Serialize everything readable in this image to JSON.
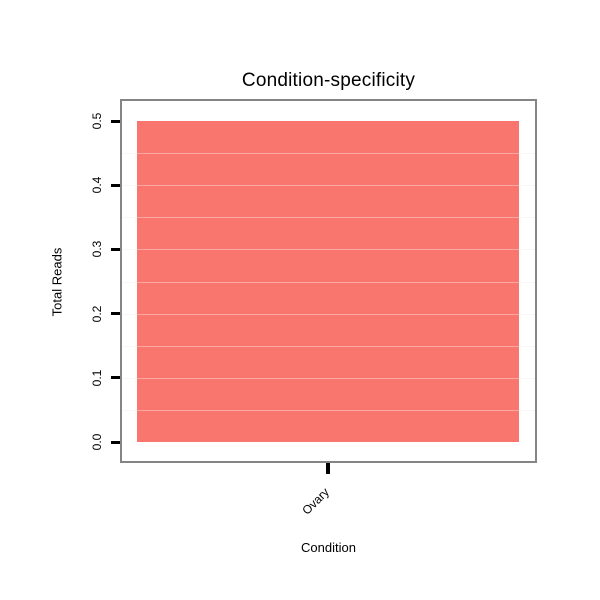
{
  "chart_data": {
    "type": "bar",
    "title": "Condition-specificity",
    "xlabel": "Condition",
    "ylabel": "Total Reads",
    "categories": [
      "Ovary"
    ],
    "values": [
      0.5
    ],
    "ylim": [
      0,
      0.5
    ],
    "yticks": [
      0,
      0.1,
      0.2,
      0.3,
      0.4,
      0.5
    ],
    "ytick_labels": [
      "0.0",
      "0.1",
      "0.2",
      "0.3",
      "0.4",
      "0.5"
    ],
    "ygrid_step": 0.05,
    "bar_color": "#F8766D",
    "axis_box_color": "#858585",
    "grid": true,
    "legend": false,
    "ytick_label_rotation": 90,
    "xtick_label_rotation": 45
  }
}
